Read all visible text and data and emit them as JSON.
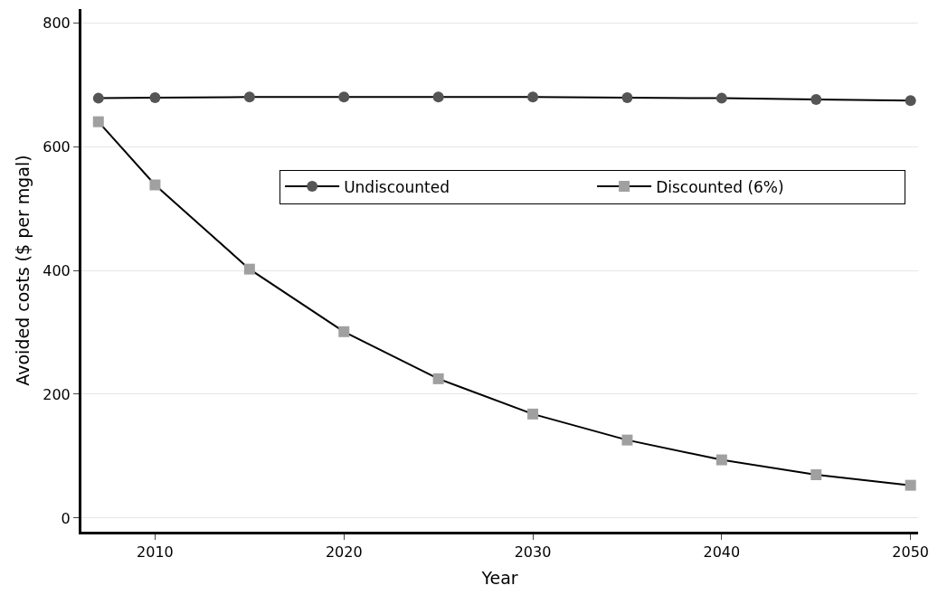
{
  "chart_data": {
    "type": "line",
    "xlabel": "Year",
    "ylabel": "Avoided costs ($ per mgal)",
    "x": [
      2007,
      2010,
      2015,
      2020,
      2025,
      2030,
      2035,
      2040,
      2045,
      2050
    ],
    "series": [
      {
        "name": "Undiscounted",
        "color": "#555555",
        "marker": "circle",
        "values": [
          678,
          679,
          680,
          680,
          680,
          680,
          679,
          678,
          676,
          674
        ]
      },
      {
        "name": "Discounted (6%)",
        "color": "#a0a0a0",
        "marker": "square",
        "values": [
          640,
          538,
          402,
          301,
          225,
          168,
          126,
          94,
          70,
          53
        ]
      }
    ],
    "xlim": [
      2006.1,
      2050.4
    ],
    "xticks": [
      2010,
      2020,
      2030,
      2040,
      2050
    ],
    "ylim": [
      -22,
      822
    ],
    "yticks": [
      0,
      200,
      400,
      600,
      800
    ],
    "grid": "y",
    "legend": "right",
    "line_style": "solid"
  }
}
